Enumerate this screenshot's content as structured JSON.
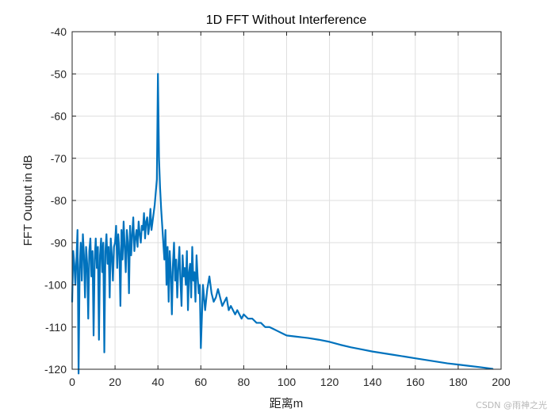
{
  "chart_data": {
    "type": "line",
    "title": "1D FFT Without Interference",
    "xlabel": "距离m",
    "ylabel": "FFT Output in dB",
    "xlim": [
      0,
      200
    ],
    "ylim": [
      -120,
      -40
    ],
    "xticks": [
      0,
      20,
      40,
      60,
      80,
      100,
      120,
      140,
      160,
      180,
      200
    ],
    "yticks": [
      -120,
      -110,
      -100,
      -90,
      -80,
      -70,
      -60,
      -50,
      -40
    ],
    "grid": true,
    "series": [
      {
        "name": "FFT Output",
        "color": "#0072BD",
        "x": [
          0,
          0.5,
          1,
          1.5,
          2,
          2.5,
          3,
          3.5,
          4,
          4.5,
          5,
          5.5,
          6,
          6.5,
          7,
          7.5,
          8,
          8.5,
          9,
          9.5,
          10,
          10.5,
          11,
          11.5,
          12,
          12.5,
          13,
          13.5,
          14,
          14.5,
          15,
          15.5,
          16,
          16.5,
          17,
          17.5,
          18,
          18.5,
          19,
          19.5,
          20,
          20.5,
          21,
          21.5,
          22,
          22.5,
          23,
          23.5,
          24,
          24.5,
          25,
          25.5,
          26,
          26.5,
          27,
          27.5,
          28,
          28.5,
          29,
          29.5,
          30,
          30.5,
          31,
          31.5,
          32,
          32.5,
          33,
          33.5,
          34,
          34.5,
          35,
          35.5,
          36,
          36.5,
          37,
          37.5,
          38,
          38.5,
          39,
          39.5,
          40,
          40.5,
          41,
          41.5,
          42,
          42.5,
          43,
          43.5,
          44,
          44.5,
          45,
          45.5,
          46,
          46.5,
          47,
          47.5,
          48,
          48.5,
          49,
          49.5,
          50,
          50.5,
          51,
          51.5,
          52,
          52.5,
          53,
          53.5,
          54,
          54.5,
          55,
          55.5,
          56,
          56.5,
          57,
          57.5,
          58,
          58.5,
          59,
          59.5,
          60,
          61,
          62,
          63,
          64,
          65,
          66,
          67,
          68,
          69,
          70,
          71,
          72,
          73,
          74,
          75,
          76,
          77,
          78,
          79,
          80,
          82,
          84,
          86,
          88,
          90,
          92,
          94,
          96,
          98,
          100,
          105,
          110,
          115,
          120,
          125,
          130,
          135,
          140,
          145,
          150,
          155,
          160,
          165,
          170,
          175,
          180,
          185,
          190,
          196
        ],
        "y": [
          -104,
          -92,
          -95,
          -100,
          -94,
          -87,
          -121,
          -96,
          -90,
          -99,
          -88,
          -93,
          -103,
          -91,
          -95,
          -108,
          -92,
          -89,
          -98,
          -92,
          -112,
          -94,
          -89,
          -96,
          -91,
          -113,
          -93,
          -89,
          -97,
          -90,
          -116,
          -92,
          -88,
          -95,
          -91,
          -103,
          -89,
          -93,
          -99,
          -91,
          -90,
          -86,
          -96,
          -88,
          -92,
          -105,
          -87,
          -94,
          -85,
          -91,
          -97,
          -87,
          -90,
          -102,
          -86,
          -93,
          -88,
          -84,
          -92,
          -89,
          -87,
          -91,
          -85,
          -88,
          -90,
          -86,
          -87,
          -83,
          -89,
          -85,
          -84,
          -88,
          -86,
          -82,
          -87,
          -85,
          -83,
          -81,
          -78,
          -75,
          -50,
          -70,
          -77,
          -82,
          -86,
          -90,
          -94,
          -87,
          -100,
          -91,
          -104,
          -92,
          -97,
          -107,
          -95,
          -90,
          -99,
          -94,
          -103,
          -96,
          -91,
          -99,
          -105,
          -93,
          -98,
          -96,
          -100,
          -92,
          -106,
          -97,
          -95,
          -103,
          -91,
          -99,
          -97,
          -104,
          -93,
          -98,
          -102,
          -100,
          -115,
          -100,
          -106,
          -101,
          -98,
          -102,
          -104,
          -103,
          -101,
          -103,
          -105,
          -104,
          -103,
          -106,
          -105,
          -106,
          -107,
          -106,
          -107,
          -108,
          -107,
          -108,
          -108,
          -109,
          -109,
          -110,
          -110,
          -110.5,
          -111,
          -111.5,
          -112,
          -112.3,
          -112.6,
          -113,
          -113.5,
          -114.2,
          -114.8,
          -115.3,
          -115.8,
          -116.2,
          -116.6,
          -117,
          -117.4,
          -117.8,
          -118.2,
          -118.6,
          -118.9,
          -119.2,
          -119.5,
          -119.9
        ]
      }
    ]
  },
  "watermark": "CSDN @雨神之光"
}
